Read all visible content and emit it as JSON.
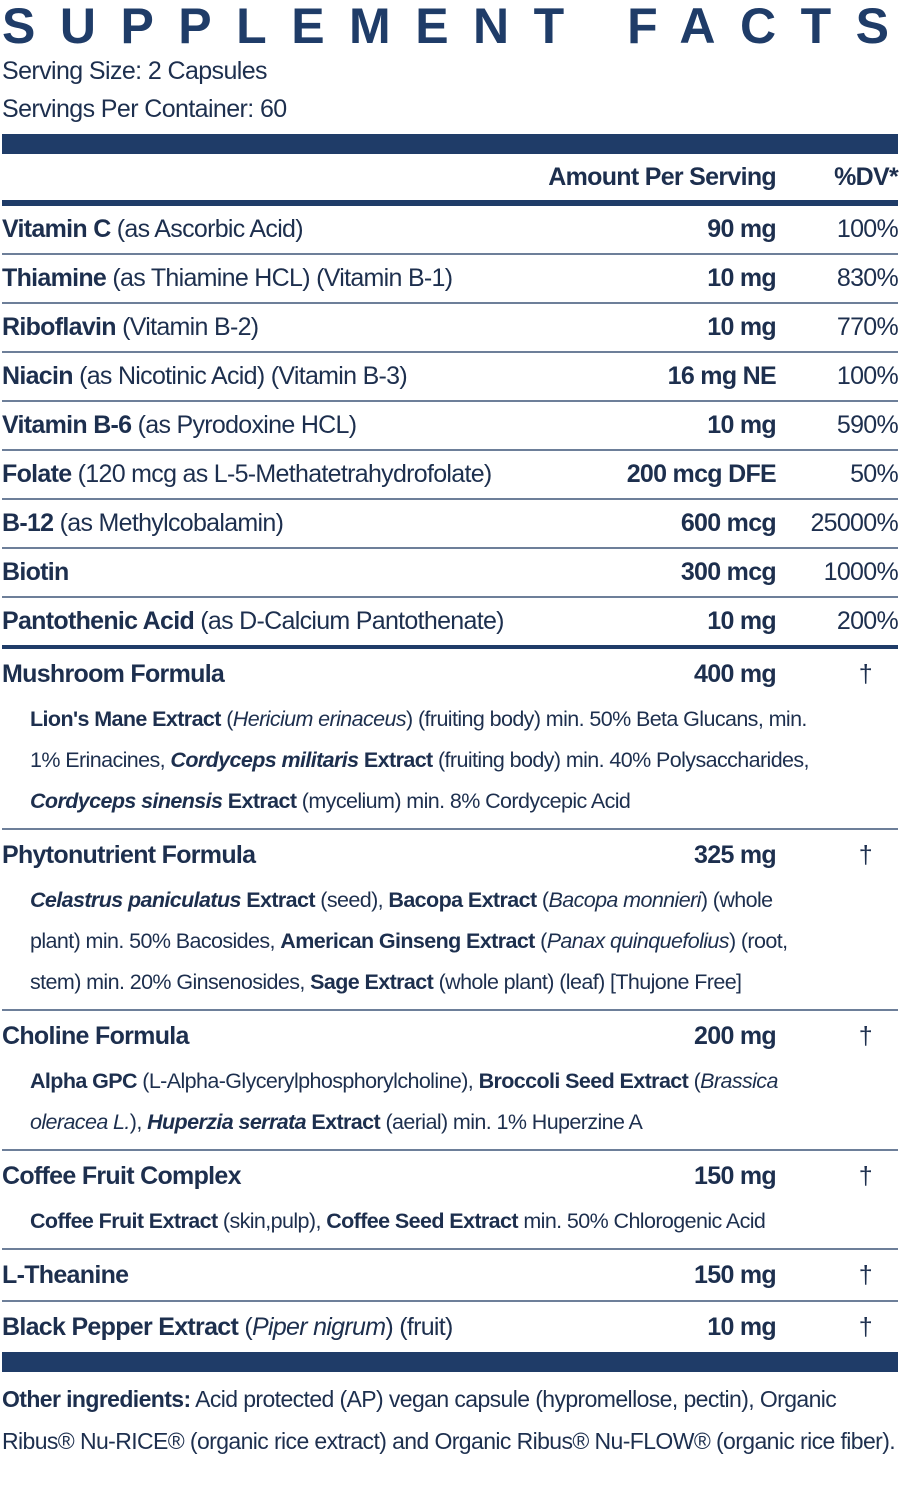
{
  "title": "SUPPLEMENT FACTS",
  "serving_size": "Serving Size: 2 Capsules",
  "servings_per_container": "Servings Per Container: 60",
  "header": {
    "amount": "Amount Per Serving",
    "dv": "%DV*"
  },
  "vitamins": [
    {
      "label": [
        {
          "text": "Vitamin C",
          "style": "bold"
        },
        {
          "text": " (as Ascorbic Acid)"
        }
      ],
      "amount": "90 mg",
      "dv": "100%"
    },
    {
      "label": [
        {
          "text": "Thiamine",
          "style": "bold"
        },
        {
          "text": " (as Thiamine HCL) (Vitamin B-1)"
        }
      ],
      "amount": "10 mg",
      "dv": "830%"
    },
    {
      "label": [
        {
          "text": "Riboflavin",
          "style": "bold"
        },
        {
          "text": " (Vitamin B-2)"
        }
      ],
      "amount": "10 mg",
      "dv": "770%"
    },
    {
      "label": [
        {
          "text": "Niacin",
          "style": "bold"
        },
        {
          "text": " (as Nicotinic Acid) (Vitamin B-3)"
        }
      ],
      "amount": "16 mg NE",
      "dv": "100%"
    },
    {
      "label": [
        {
          "text": "Vitamin B-6",
          "style": "bold"
        },
        {
          "text": " (as Pyrodoxine HCL)"
        }
      ],
      "amount": "10 mg",
      "dv": "590%"
    },
    {
      "label": [
        {
          "text": "Folate",
          "style": "bold"
        },
        {
          "text": " (120 mcg as L-5-Methatetrahydrofolate)"
        }
      ],
      "amount": "200 mcg DFE",
      "dv": "50%"
    },
    {
      "label": [
        {
          "text": "B-12",
          "style": "bold"
        },
        {
          "text": " (as Methylcobalamin)"
        }
      ],
      "amount": "600 mcg",
      "dv": "25000%"
    },
    {
      "label": [
        {
          "text": "Biotin",
          "style": "bold"
        }
      ],
      "amount": "300 mcg",
      "dv": "1000%"
    },
    {
      "label": [
        {
          "text": "Pantothenic Acid",
          "style": "bold"
        },
        {
          "text": " (as D-Calcium Pantothenate)"
        }
      ],
      "amount": "10 mg",
      "dv": "200%"
    }
  ],
  "formulas": [
    {
      "label": [
        {
          "text": "Mushroom Formula",
          "style": "bold"
        }
      ],
      "amount": "400 mg",
      "dv": "†",
      "description": [
        {
          "text": "Lion's Mane Extract",
          "style": "bold"
        },
        {
          "text": " ("
        },
        {
          "text": "Hericium erinaceus",
          "style": "italic"
        },
        {
          "text": ") (fruiting body) min. 50% Beta Glucans, min. 1% Erinacines, "
        },
        {
          "text": "Cordyceps militaris",
          "style": "bold-italic"
        },
        {
          "text": " Extract",
          "style": "bold"
        },
        {
          "text": " (fruiting body) min. 40% Polysaccharides, "
        },
        {
          "text": "Cordyceps sinensis",
          "style": "bold-italic"
        },
        {
          "text": " Extract",
          "style": "bold"
        },
        {
          "text": " (mycelium) min. 8% Cordycepic Acid"
        }
      ]
    },
    {
      "label": [
        {
          "text": "Phytonutrient Formula",
          "style": "bold"
        }
      ],
      "amount": "325 mg",
      "dv": "†",
      "description": [
        {
          "text": "Celastrus paniculatus",
          "style": "bold-italic"
        },
        {
          "text": " Extract",
          "style": "bold"
        },
        {
          "text": " (seed), "
        },
        {
          "text": "Bacopa Extract",
          "style": "bold"
        },
        {
          "text": " ("
        },
        {
          "text": "Bacopa monnieri",
          "style": "italic"
        },
        {
          "text": ") (whole plant) min. 50% Bacosides, "
        },
        {
          "text": "American Ginseng Extract",
          "style": "bold"
        },
        {
          "text": " ("
        },
        {
          "text": "Panax quinquefolius",
          "style": "italic"
        },
        {
          "text": ") (root, stem) min. 20% Ginsenosides, "
        },
        {
          "text": "Sage Extract",
          "style": "bold"
        },
        {
          "text": " (whole plant) (leaf) [Thujone Free]"
        }
      ]
    },
    {
      "label": [
        {
          "text": "Choline Formula",
          "style": "bold"
        }
      ],
      "amount": "200 mg",
      "dv": "†",
      "description": [
        {
          "text": "Alpha GPC",
          "style": "bold"
        },
        {
          "text": " (L-Alpha-Glycerylphosphorylcholine), "
        },
        {
          "text": "Broccoli Seed Extract",
          "style": "bold"
        },
        {
          "text": " ("
        },
        {
          "text": "Brassica oleracea L.",
          "style": "italic"
        },
        {
          "text": "), "
        },
        {
          "text": "Huperzia serrata",
          "style": "bold-italic"
        },
        {
          "text": " Extract",
          "style": "bold"
        },
        {
          "text": " (aerial) min. 1% Huperzine A"
        }
      ]
    },
    {
      "label": [
        {
          "text": "Coffee Fruit Complex",
          "style": "bold"
        }
      ],
      "amount": "150 mg",
      "dv": "†",
      "description": [
        {
          "text": "Coffee Fruit Extract",
          "style": "bold"
        },
        {
          "text": " (skin,pulp), "
        },
        {
          "text": "Coffee Seed Extract",
          "style": "bold"
        },
        {
          "text": " min. 50% Chlorogenic Acid"
        }
      ]
    },
    {
      "label": [
        {
          "text": "L-Theanine",
          "style": "bold"
        }
      ],
      "amount": "150 mg",
      "dv": "†"
    },
    {
      "label": [
        {
          "text": "Black Pepper Extract",
          "style": "bold"
        },
        {
          "text": " ("
        },
        {
          "text": "Piper nigrum",
          "style": "italic"
        },
        {
          "text": ") (fruit)"
        }
      ],
      "amount": "10 mg",
      "dv": "†"
    }
  ],
  "other_ingredients": [
    {
      "text": "Other ingredients:",
      "style": "bold"
    },
    {
      "text": " Acid protected (AP) vegan capsule (hypromellose, pectin), Organic Ribus® Nu-RICE® (organic rice extract) and Organic Ribus® Nu-FLOW® (organic rice fiber)."
    }
  ]
}
